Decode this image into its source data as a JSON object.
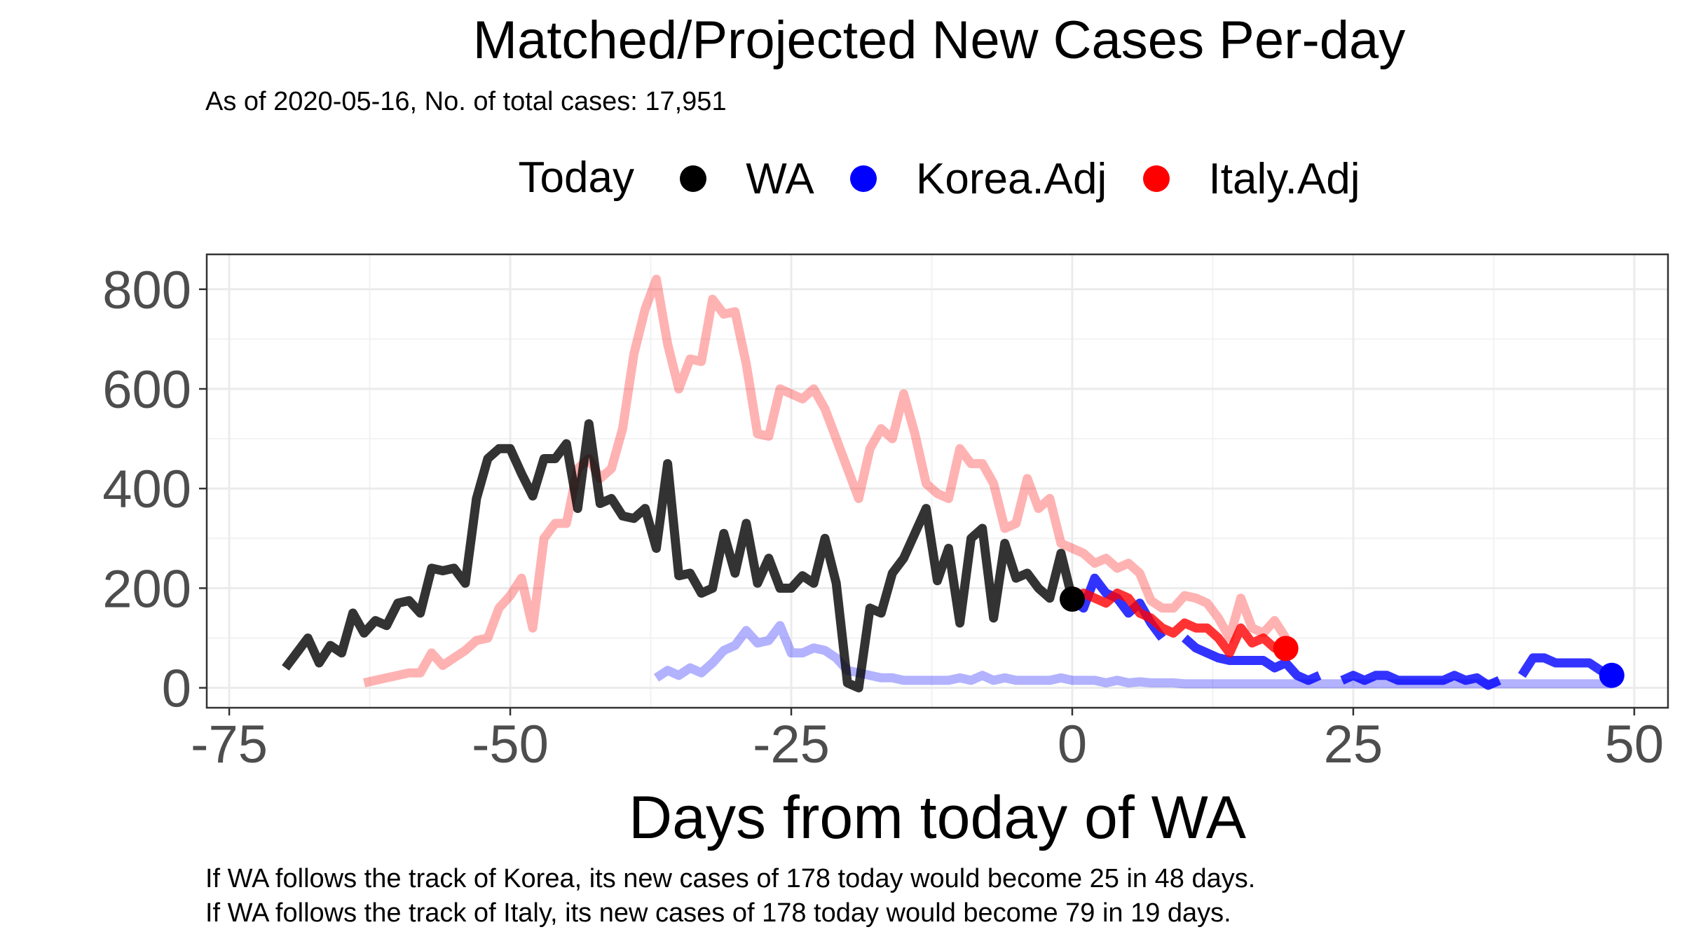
{
  "chart_data": {
    "type": "line",
    "title": "Matched/Projected New Cases Per-day",
    "subtitle": "As of 2020-05-16, No. of total cases: 17,951",
    "xlabel": "Days from today of WA",
    "ylabel": "",
    "xlim": [
      -77,
      53
    ],
    "ylim": [
      -40,
      870
    ],
    "x_ticks": [
      -75,
      -50,
      -25,
      0,
      25,
      50
    ],
    "x_tick_labels": [
      "-75",
      "-50",
      "-25",
      "0",
      "25",
      "50"
    ],
    "y_ticks": [
      0,
      200,
      400,
      600,
      800
    ],
    "y_tick_labels": [
      "0",
      "200",
      "400",
      "600",
      "800"
    ],
    "grid": true,
    "legend": {
      "position": "top",
      "title": "Today",
      "entries": [
        {
          "label": "WA",
          "color": "#000000"
        },
        {
          "label": "Korea.Adj",
          "color": "#0000ff"
        },
        {
          "label": "Italy.Adj",
          "color": "#ff0000"
        }
      ]
    },
    "series": [
      {
        "name": "Italy.Adj",
        "role": "history",
        "color": "#ff0000",
        "opacity": 0.3,
        "points": [
          [
            -63,
            10
          ],
          [
            -62,
            15
          ],
          [
            -61,
            20
          ],
          [
            -60,
            25
          ],
          [
            -59,
            30
          ],
          [
            -58,
            30
          ],
          [
            -57,
            70
          ],
          [
            -56,
            45
          ],
          [
            -55,
            60
          ],
          [
            -54,
            75
          ],
          [
            -53,
            95
          ],
          [
            -52,
            100
          ],
          [
            -51,
            160
          ],
          [
            -50,
            185
          ],
          [
            -49,
            220
          ],
          [
            -48,
            120
          ],
          [
            -47,
            300
          ],
          [
            -46,
            330
          ],
          [
            -45,
            330
          ],
          [
            -44,
            440
          ],
          [
            -43,
            460
          ],
          [
            -42,
            420
          ],
          [
            -41,
            440
          ],
          [
            -40,
            520
          ],
          [
            -39,
            670
          ],
          [
            -38,
            760
          ],
          [
            -37,
            820
          ],
          [
            -36,
            690
          ],
          [
            -35,
            600
          ],
          [
            -34,
            660
          ],
          [
            -33,
            655
          ],
          [
            -32,
            780
          ],
          [
            -31,
            750
          ],
          [
            -30,
            755
          ],
          [
            -29,
            650
          ],
          [
            -28,
            510
          ],
          [
            -27,
            505
          ],
          [
            -26,
            600
          ],
          [
            -25,
            590
          ],
          [
            -24,
            580
          ],
          [
            -23,
            600
          ],
          [
            -22,
            560
          ],
          [
            -21,
            500
          ],
          [
            -20,
            440
          ],
          [
            -19,
            380
          ],
          [
            -18,
            480
          ],
          [
            -17,
            520
          ],
          [
            -16,
            500
          ],
          [
            -15,
            590
          ],
          [
            -14,
            510
          ],
          [
            -13,
            410
          ],
          [
            -12,
            390
          ],
          [
            -11,
            380
          ],
          [
            -10,
            480
          ],
          [
            -9,
            450
          ],
          [
            -8,
            450
          ],
          [
            -7,
            410
          ],
          [
            -6,
            320
          ],
          [
            -5,
            330
          ],
          [
            -4,
            420
          ],
          [
            -3,
            360
          ],
          [
            -2,
            380
          ],
          [
            -1,
            290
          ],
          [
            0,
            280
          ],
          [
            1,
            270
          ],
          [
            2,
            250
          ],
          [
            3,
            260
          ],
          [
            4,
            240
          ],
          [
            5,
            250
          ],
          [
            6,
            230
          ],
          [
            7,
            175
          ],
          [
            8,
            160
          ],
          [
            9,
            160
          ],
          [
            10,
            185
          ],
          [
            11,
            180
          ],
          [
            12,
            170
          ],
          [
            13,
            140
          ],
          [
            14,
            100
          ],
          [
            15,
            180
          ],
          [
            16,
            120
          ],
          [
            17,
            110
          ],
          [
            18,
            135
          ],
          [
            19,
            100
          ]
        ]
      },
      {
        "name": "Korea.Adj",
        "role": "history",
        "color": "#0000ff",
        "opacity": 0.3,
        "points": [
          [
            -37,
            20
          ],
          [
            -36,
            35
          ],
          [
            -35,
            25
          ],
          [
            -34,
            40
          ],
          [
            -33,
            30
          ],
          [
            -32,
            50
          ],
          [
            -31,
            75
          ],
          [
            -30,
            85
          ],
          [
            -29,
            115
          ],
          [
            -28,
            90
          ],
          [
            -27,
            95
          ],
          [
            -26,
            125
          ],
          [
            -25,
            70
          ],
          [
            -24,
            70
          ],
          [
            -23,
            80
          ],
          [
            -22,
            75
          ],
          [
            -21,
            60
          ],
          [
            -20,
            35
          ],
          [
            -19,
            30
          ],
          [
            -18,
            25
          ],
          [
            -17,
            20
          ],
          [
            -16,
            20
          ],
          [
            -15,
            15
          ],
          [
            -14,
            15
          ],
          [
            -13,
            15
          ],
          [
            -12,
            15
          ],
          [
            -11,
            15
          ],
          [
            -10,
            20
          ],
          [
            -9,
            15
          ],
          [
            -8,
            25
          ],
          [
            -7,
            15
          ],
          [
            -6,
            20
          ],
          [
            -5,
            15
          ],
          [
            -4,
            15
          ],
          [
            -3,
            15
          ],
          [
            -2,
            15
          ],
          [
            -1,
            20
          ],
          [
            0,
            15
          ],
          [
            1,
            15
          ],
          [
            2,
            15
          ],
          [
            3,
            10
          ],
          [
            4,
            15
          ],
          [
            5,
            10
          ],
          [
            6,
            12
          ],
          [
            7,
            10
          ],
          [
            8,
            10
          ],
          [
            9,
            10
          ],
          [
            10,
            8
          ],
          [
            11,
            8
          ],
          [
            12,
            8
          ],
          [
            13,
            8
          ],
          [
            14,
            8
          ],
          [
            15,
            8
          ],
          [
            16,
            8
          ],
          [
            17,
            8
          ],
          [
            18,
            8
          ],
          [
            19,
            8
          ],
          [
            20,
            8
          ],
          [
            21,
            8
          ],
          [
            22,
            8
          ],
          [
            23,
            8
          ],
          [
            24,
            8
          ],
          [
            25,
            8
          ],
          [
            26,
            8
          ],
          [
            27,
            8
          ],
          [
            28,
            8
          ],
          [
            29,
            8
          ],
          [
            30,
            8
          ],
          [
            31,
            8
          ],
          [
            32,
            8
          ],
          [
            33,
            8
          ],
          [
            34,
            8
          ],
          [
            35,
            8
          ],
          [
            36,
            8
          ],
          [
            37,
            8
          ],
          [
            38,
            8
          ],
          [
            39,
            8
          ],
          [
            40,
            8
          ],
          [
            41,
            8
          ],
          [
            42,
            8
          ],
          [
            43,
            8
          ],
          [
            44,
            8
          ],
          [
            45,
            8
          ],
          [
            46,
            8
          ],
          [
            47,
            8
          ],
          [
            48,
            8
          ]
        ]
      },
      {
        "name": "WA",
        "role": "history",
        "color": "#000000",
        "opacity": 0.8,
        "points": [
          [
            -70,
            40
          ],
          [
            -69,
            70
          ],
          [
            -68,
            100
          ],
          [
            -67,
            50
          ],
          [
            -66,
            85
          ],
          [
            -65,
            70
          ],
          [
            -64,
            150
          ],
          [
            -63,
            110
          ],
          [
            -62,
            135
          ],
          [
            -61,
            125
          ],
          [
            -60,
            170
          ],
          [
            -59,
            175
          ],
          [
            -58,
            150
          ],
          [
            -57,
            240
          ],
          [
            -56,
            235
          ],
          [
            -55,
            240
          ],
          [
            -54,
            210
          ],
          [
            -53,
            380
          ],
          [
            -52,
            460
          ],
          [
            -51,
            480
          ],
          [
            -50,
            480
          ],
          [
            -49,
            430
          ],
          [
            -48,
            385
          ],
          [
            -47,
            460
          ],
          [
            -46,
            460
          ],
          [
            -45,
            490
          ],
          [
            -44,
            360
          ],
          [
            -43,
            530
          ],
          [
            -42,
            370
          ],
          [
            -41,
            380
          ],
          [
            -40,
            345
          ],
          [
            -39,
            340
          ],
          [
            -38,
            360
          ],
          [
            -37,
            280
          ],
          [
            -36,
            450
          ],
          [
            -35,
            225
          ],
          [
            -34,
            230
          ],
          [
            -33,
            190
          ],
          [
            -32,
            200
          ],
          [
            -31,
            310
          ],
          [
            -30,
            230
          ],
          [
            -29,
            330
          ],
          [
            -28,
            210
          ],
          [
            -27,
            260
          ],
          [
            -26,
            200
          ],
          [
            -25,
            200
          ],
          [
            -24,
            225
          ],
          [
            -23,
            210
          ],
          [
            -22,
            300
          ],
          [
            -21,
            210
          ],
          [
            -20,
            10
          ],
          [
            -19,
            0
          ],
          [
            -18,
            160
          ],
          [
            -17,
            150
          ],
          [
            -16,
            230
          ],
          [
            -15,
            260
          ],
          [
            -14,
            310
          ],
          [
            -13,
            360
          ],
          [
            -12,
            215
          ],
          [
            -11,
            280
          ],
          [
            -10,
            130
          ],
          [
            -9,
            300
          ],
          [
            -8,
            320
          ],
          [
            -7,
            140
          ],
          [
            -6,
            290
          ],
          [
            -5,
            220
          ],
          [
            -4,
            230
          ],
          [
            -3,
            200
          ],
          [
            -2,
            180
          ],
          [
            -1,
            270
          ],
          [
            0,
            178
          ]
        ]
      },
      {
        "name": "Korea.Adj",
        "role": "projection",
        "color": "#0000ff",
        "opacity": 0.8,
        "points": [
          [
            0,
            178
          ],
          [
            1,
            160
          ],
          [
            2,
            220
          ],
          [
            3,
            190
          ],
          [
            4,
            180
          ],
          [
            5,
            150
          ],
          [
            6,
            170
          ],
          [
            7,
            130
          ],
          [
            8,
            100
          ],
          [
            9,
            null
          ],
          [
            10,
            100
          ],
          [
            11,
            80
          ],
          [
            12,
            70
          ],
          [
            13,
            60
          ],
          [
            14,
            55
          ],
          [
            15,
            55
          ],
          [
            16,
            55
          ],
          [
            17,
            55
          ],
          [
            18,
            40
          ],
          [
            19,
            50
          ],
          [
            20,
            25
          ],
          [
            21,
            15
          ],
          [
            22,
            25
          ],
          [
            23,
            null
          ],
          [
            24,
            15
          ],
          [
            25,
            25
          ],
          [
            26,
            15
          ],
          [
            27,
            25
          ],
          [
            28,
            25
          ],
          [
            29,
            15
          ],
          [
            30,
            15
          ],
          [
            31,
            15
          ],
          [
            32,
            15
          ],
          [
            33,
            15
          ],
          [
            34,
            25
          ],
          [
            35,
            15
          ],
          [
            36,
            20
          ],
          [
            37,
            5
          ],
          [
            38,
            15
          ],
          [
            39,
            null
          ],
          [
            40,
            25
          ],
          [
            41,
            60
          ],
          [
            42,
            60
          ],
          [
            43,
            50
          ],
          [
            44,
            50
          ],
          [
            45,
            50
          ],
          [
            46,
            50
          ],
          [
            47,
            35
          ],
          [
            48,
            25
          ]
        ]
      },
      {
        "name": "Italy.Adj",
        "role": "projection",
        "color": "#ff0000",
        "opacity": 0.8,
        "points": [
          [
            0,
            178
          ],
          [
            1,
            190
          ],
          [
            2,
            180
          ],
          [
            3,
            170
          ],
          [
            4,
            190
          ],
          [
            5,
            180
          ],
          [
            6,
            150
          ],
          [
            7,
            140
          ],
          [
            8,
            120
          ],
          [
            9,
            110
          ],
          [
            10,
            130
          ],
          [
            11,
            120
          ],
          [
            12,
            120
          ],
          [
            13,
            100
          ],
          [
            14,
            70
          ],
          [
            15,
            120
          ],
          [
            16,
            90
          ],
          [
            17,
            100
          ],
          [
            18,
            80
          ],
          [
            19,
            79
          ]
        ]
      }
    ],
    "markers": [
      {
        "series": "WA",
        "x": 0,
        "y": 178,
        "color": "#000000"
      },
      {
        "series": "Korea.Adj",
        "x": 48,
        "y": 25,
        "color": "#0000ff"
      },
      {
        "series": "Italy.Adj",
        "x": 19,
        "y": 79,
        "color": "#ff0000"
      }
    ]
  },
  "notes": {
    "korea": "If WA follows the track of Korea, its new cases of 178 today would become 25 in 48 days.",
    "italy": "If WA follows the track of Italy, its new cases of 178 today would become 79 in 19 days."
  }
}
